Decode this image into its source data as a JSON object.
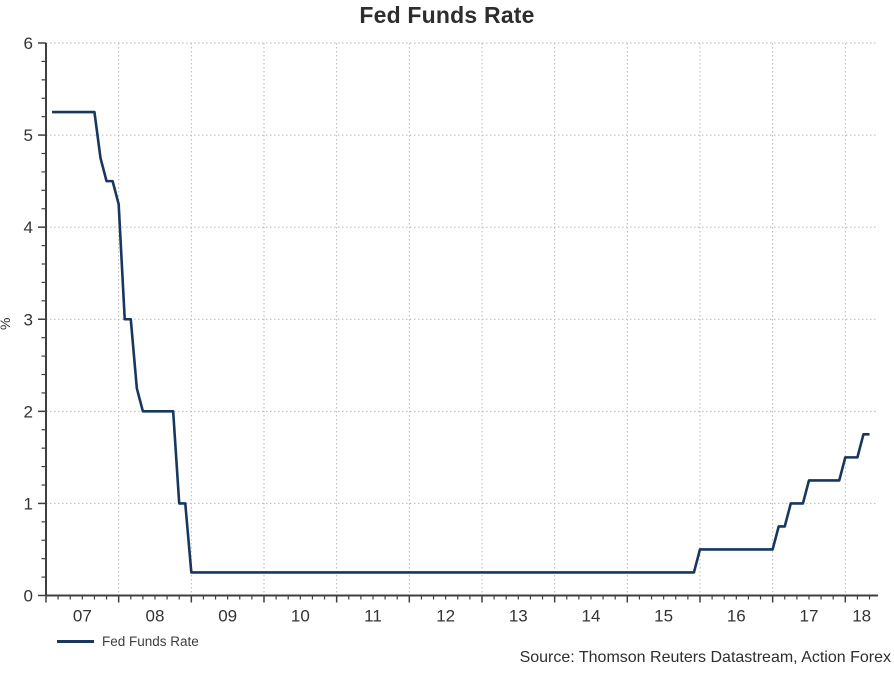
{
  "title": "Fed Funds Rate",
  "legend": {
    "label": "Fed Funds Rate"
  },
  "source": "Source: Thomson Reuters Datastream, Action Forex",
  "colors": {
    "line": "#17375e",
    "grid": "#b8b8b8",
    "axis": "#3f3f3f",
    "tick_text": "#333333"
  },
  "chart_data": {
    "type": "line",
    "title": "Fed Funds Rate",
    "xlabel": "",
    "ylabel": "%",
    "xlim": [
      2007,
      2018.45
    ],
    "ylim": [
      0,
      6
    ],
    "y_ticks": [
      0,
      1,
      2,
      3,
      4,
      5,
      6
    ],
    "y_minor_step": 0.2,
    "x_year_ticks": [
      2007,
      2008,
      2009,
      2010,
      2011,
      2012,
      2013,
      2014,
      2015,
      2016,
      2017,
      2018
    ],
    "x_tick_labels": [
      "07",
      "08",
      "09",
      "10",
      "11",
      "12",
      "13",
      "14",
      "15",
      "16",
      "17",
      "18"
    ],
    "x_minor_step_years": 0.1667,
    "grid": "dotted",
    "legend_position": "bottom-left",
    "series": [
      {
        "name": "Fed Funds Rate",
        "color": "#17375e",
        "frequency": "monthly",
        "x_first": 2007.0833,
        "x_step": 0.083333,
        "values": [
          5.25,
          5.25,
          5.25,
          5.25,
          5.25,
          5.25,
          5.25,
          5.25,
          4.75,
          4.5,
          4.5,
          4.25,
          3,
          3,
          2.25,
          2,
          2,
          2,
          2,
          2,
          2,
          1,
          1,
          0.25,
          0.25,
          0.25,
          0.25,
          0.25,
          0.25,
          0.25,
          0.25,
          0.25,
          0.25,
          0.25,
          0.25,
          0.25,
          0.25,
          0.25,
          0.25,
          0.25,
          0.25,
          0.25,
          0.25,
          0.25,
          0.25,
          0.25,
          0.25,
          0.25,
          0.25,
          0.25,
          0.25,
          0.25,
          0.25,
          0.25,
          0.25,
          0.25,
          0.25,
          0.25,
          0.25,
          0.25,
          0.25,
          0.25,
          0.25,
          0.25,
          0.25,
          0.25,
          0.25,
          0.25,
          0.25,
          0.25,
          0.25,
          0.25,
          0.25,
          0.25,
          0.25,
          0.25,
          0.25,
          0.25,
          0.25,
          0.25,
          0.25,
          0.25,
          0.25,
          0.25,
          0.25,
          0.25,
          0.25,
          0.25,
          0.25,
          0.25,
          0.25,
          0.25,
          0.25,
          0.25,
          0.25,
          0.25,
          0.25,
          0.25,
          0.25,
          0.25,
          0.25,
          0.25,
          0.25,
          0.25,
          0.25,
          0.25,
          0.25,
          0.5,
          0.5,
          0.5,
          0.5,
          0.5,
          0.5,
          0.5,
          0.5,
          0.5,
          0.5,
          0.5,
          0.5,
          0.5,
          0.75,
          0.75,
          1,
          1,
          1,
          1.25,
          1.25,
          1.25,
          1.25,
          1.25,
          1.25,
          1.5,
          1.5,
          1.5,
          1.75,
          1.75
        ]
      }
    ]
  }
}
